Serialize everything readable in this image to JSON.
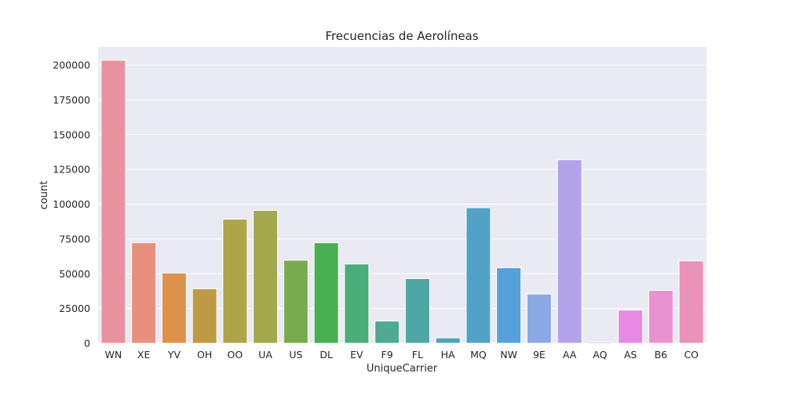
{
  "chart_data": {
    "type": "bar",
    "title": "Frecuencias de Aerolíneas",
    "xlabel": "UniqueCarrier",
    "ylabel": "count",
    "categories": [
      "WN",
      "XE",
      "YV",
      "OH",
      "OO",
      "UA",
      "US",
      "DL",
      "EV",
      "F9",
      "FL",
      "HA",
      "MQ",
      "NW",
      "9E",
      "AA",
      "AQ",
      "AS",
      "B6",
      "CO"
    ],
    "values": [
      203500,
      72300,
      50500,
      39200,
      89200,
      95500,
      59700,
      72300,
      57000,
      16000,
      46500,
      3900,
      97500,
      54300,
      35400,
      132000,
      900,
      23900,
      38000,
      59200
    ],
    "colors": [
      "#e8929d",
      "#e88f7e",
      "#dd914b",
      "#be9a47",
      "#aea44a",
      "#a3a94d",
      "#79ab4e",
      "#49ae4f",
      "#4bad7a",
      "#4eaa94",
      "#4fa7a5",
      "#51a5b5",
      "#52a2c6",
      "#55a0d8",
      "#8aa8e4",
      "#b3a2ea",
      "#d29aeb",
      "#e68ae4",
      "#e891cf",
      "#e893b7"
    ],
    "yticks": [
      "0",
      "25000",
      "50000",
      "75000",
      "100000",
      "125000",
      "150000",
      "175000",
      "200000"
    ],
    "ylim": [
      0,
      213000
    ],
    "grid": true,
    "background": "#eaeaf2"
  }
}
